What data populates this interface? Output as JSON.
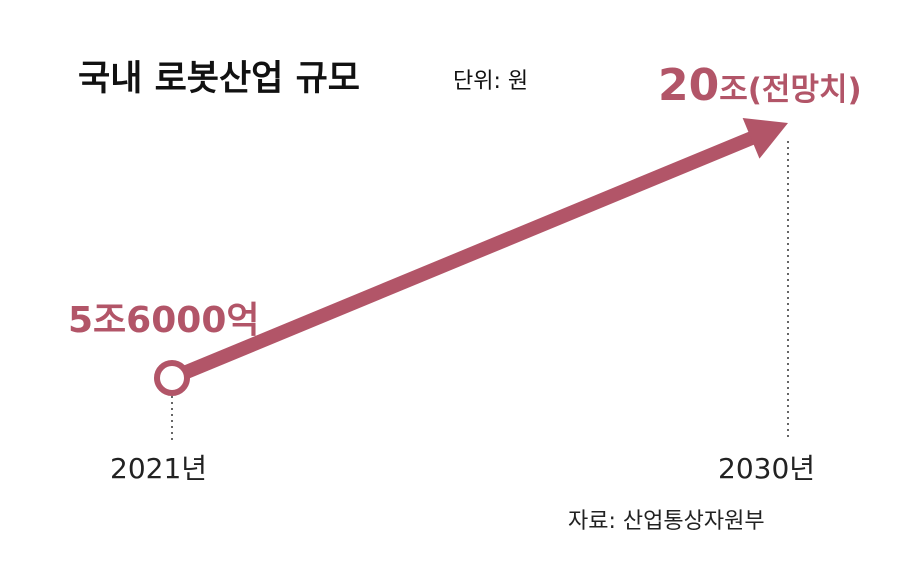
{
  "title": "국내 로봇산업 규모",
  "unit": "단위: 원",
  "source": "자료: 산업통상자원부",
  "colors": {
    "accent": "#b25568",
    "text": "#111111",
    "guide": "#333333"
  },
  "chart_data": {
    "type": "line",
    "title": "국내 로봇산업 규모",
    "subtitle": "단위: 원",
    "x": [
      2021,
      2030
    ],
    "tick_labels": [
      "2021년",
      "2030년"
    ],
    "values": [
      5.6,
      20
    ],
    "value_unit": "조 원",
    "data_labels": [
      "5조6000억",
      "20조(전망치)"
    ],
    "data_labels_parts": [
      {
        "number": "5조6000억",
        "suffix": ""
      },
      {
        "number": "20",
        "suffix": "조(전망치)"
      }
    ],
    "marker_start": "hollow-circle",
    "marker_end": "arrowhead",
    "grid": false,
    "legend": "none"
  }
}
